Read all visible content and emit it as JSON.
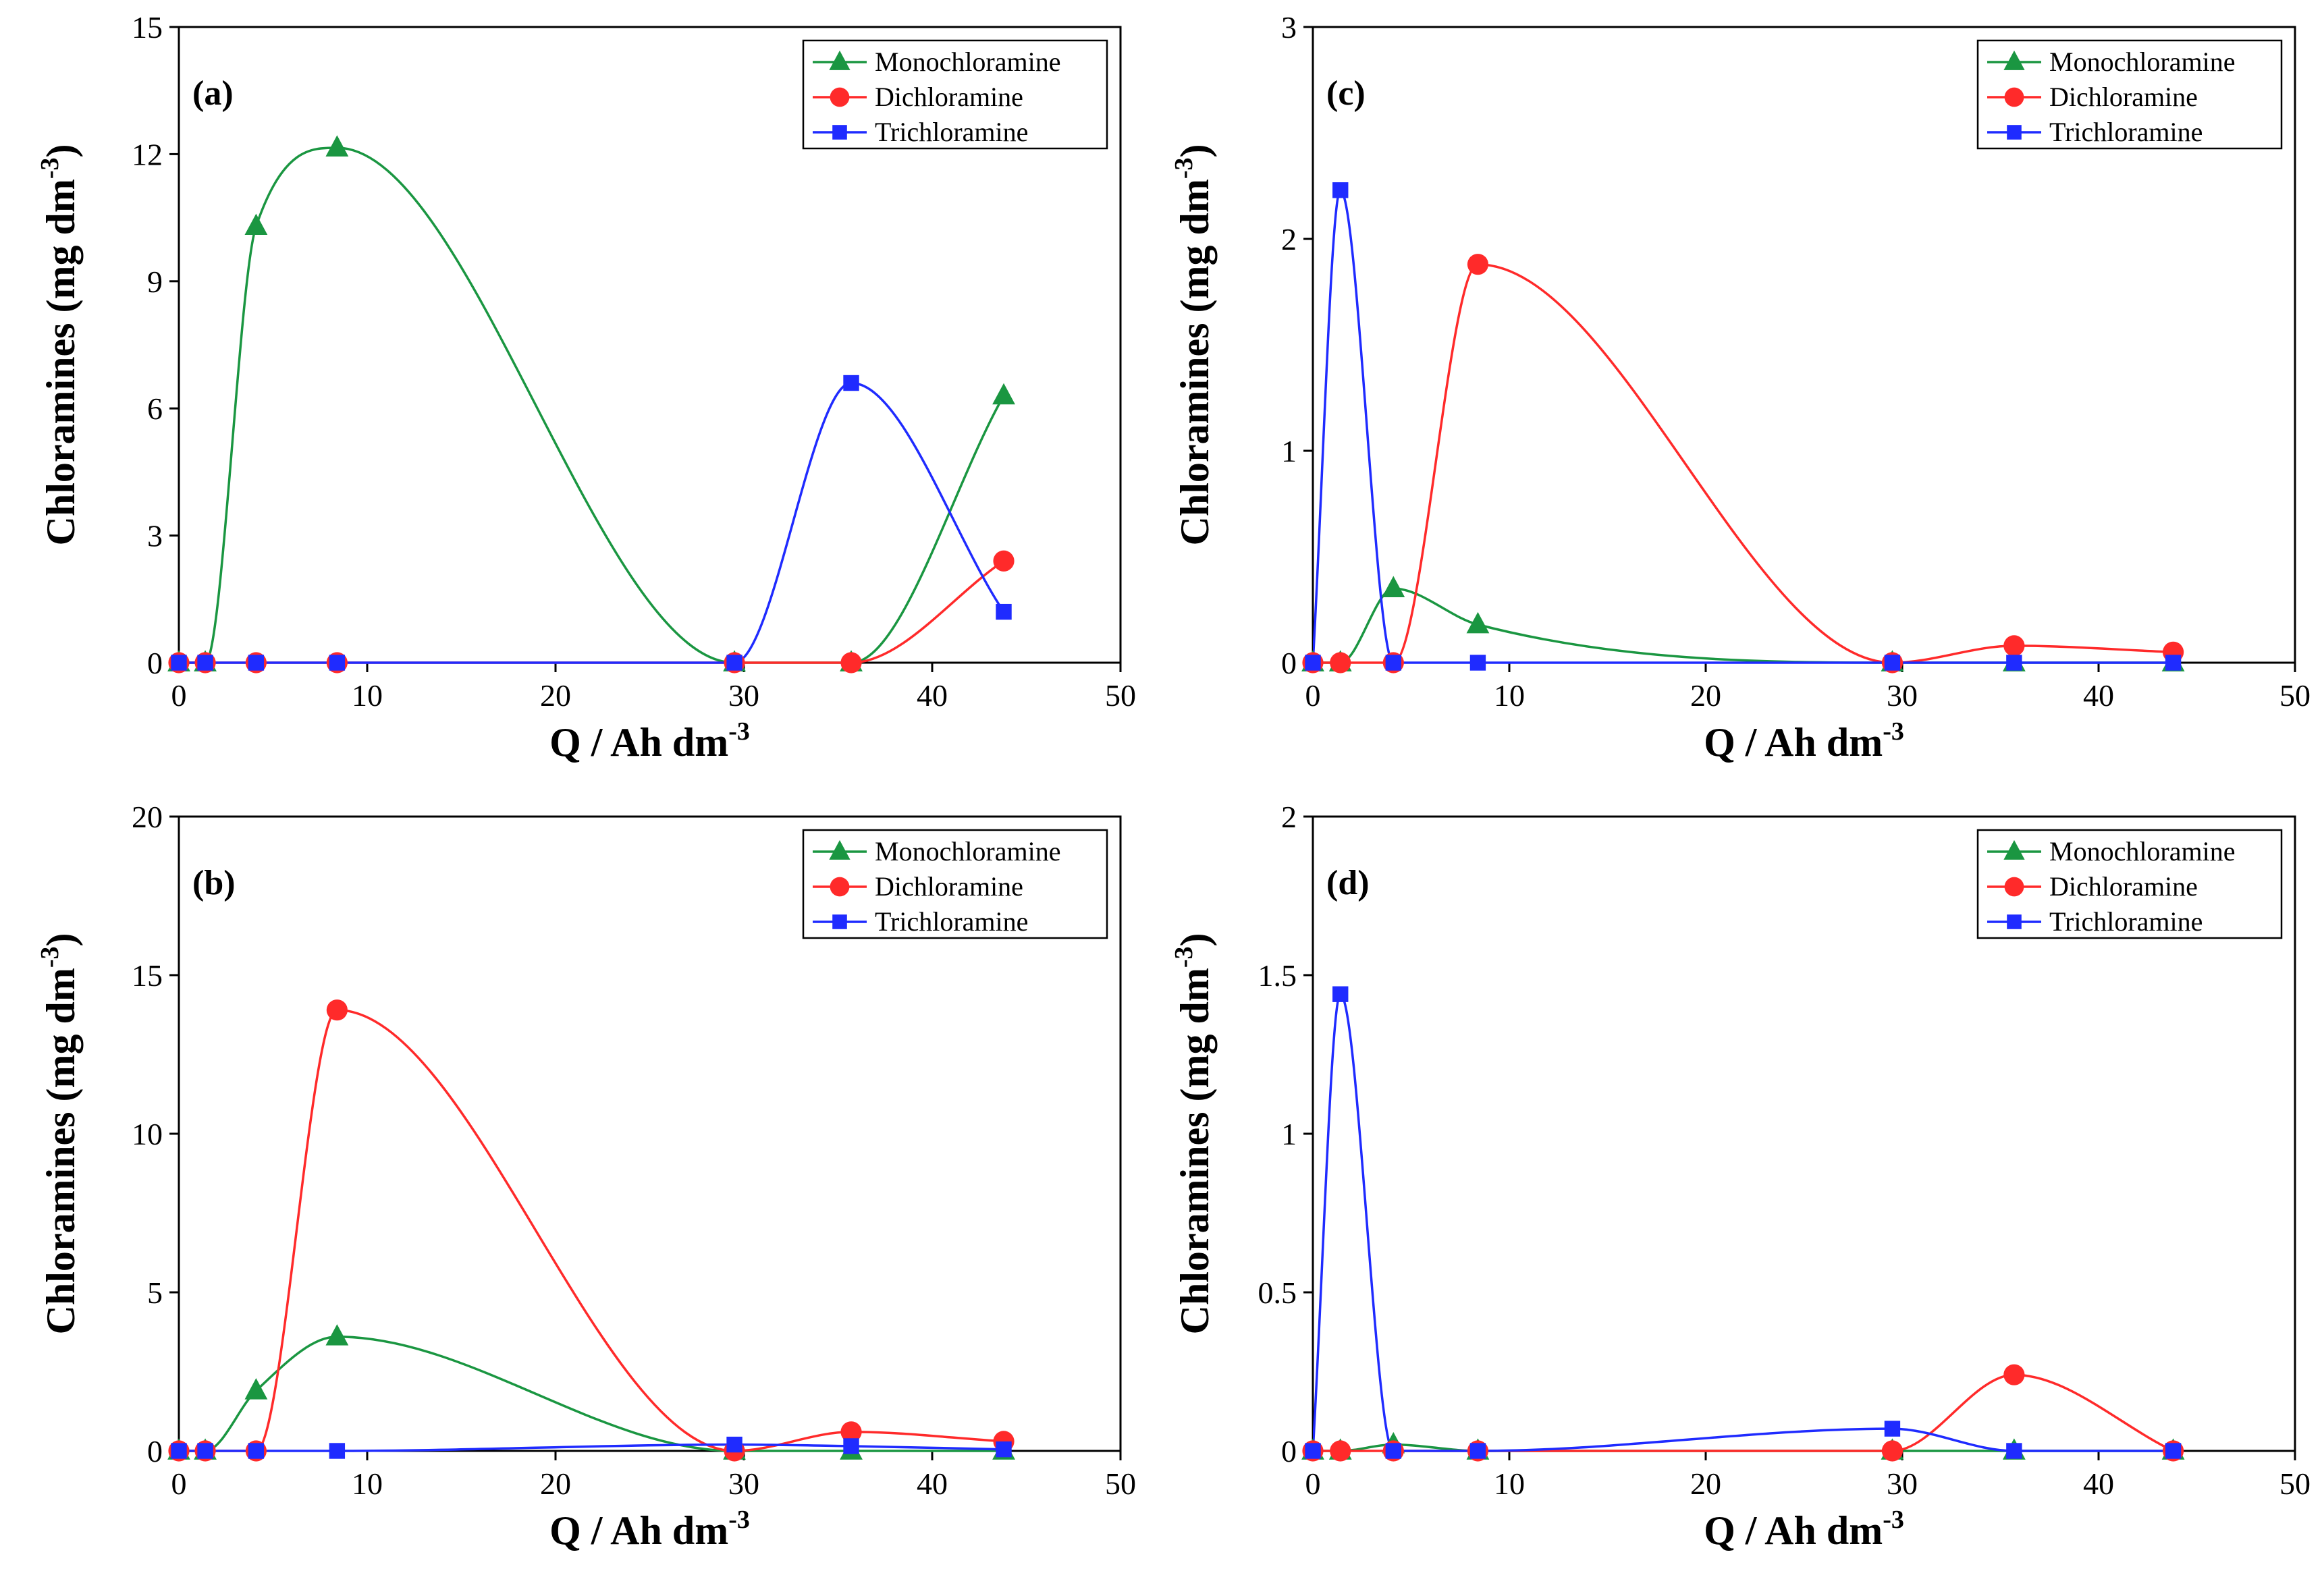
{
  "chart_data": [
    {
      "panel": "(a)",
      "type": "line",
      "xlabel": "Q / Ah dm",
      "xlabel_sup": "-3",
      "ylabel": "Chloramines (mg dm",
      "ylabel_sup": "-3",
      "ylabel_close": ")",
      "xlim": [
        0,
        50
      ],
      "ylim": [
        0,
        15
      ],
      "xticks": [
        0,
        10,
        20,
        30,
        40,
        50
      ],
      "yticks": [
        0,
        3,
        6,
        9,
        12,
        15
      ],
      "legend_position": "top-right",
      "x": [
        0,
        1.4,
        4.1,
        8.4,
        29.5,
        35.7,
        43.8
      ],
      "series": [
        {
          "name": "Monochloramine",
          "color": "#1a9641",
          "marker": "triangle",
          "values": [
            0,
            0,
            10.3,
            12.15,
            0,
            0,
            6.3
          ]
        },
        {
          "name": "Dichloramine",
          "color": "#ff2a2a",
          "marker": "circle",
          "values": [
            0,
            0,
            0,
            0,
            0,
            0,
            2.4
          ]
        },
        {
          "name": "Trichloramine",
          "color": "#1f2bff",
          "marker": "square",
          "values": [
            0,
            0,
            0,
            0,
            0,
            6.6,
            1.2
          ]
        }
      ]
    },
    {
      "panel": "(c)",
      "type": "line",
      "xlabel": "Q / Ah dm",
      "xlabel_sup": "-3",
      "ylabel": "Chloramines (mg dm",
      "ylabel_sup": "-3",
      "ylabel_close": ")",
      "xlim": [
        0,
        50
      ],
      "ylim": [
        0,
        3
      ],
      "xticks": [
        0,
        10,
        20,
        30,
        40,
        50
      ],
      "yticks": [
        0,
        1,
        2,
        3
      ],
      "legend_position": "top-right",
      "x": [
        0,
        1.4,
        4.1,
        8.4,
        29.5,
        35.7,
        43.8
      ],
      "series": [
        {
          "name": "Monochloramine",
          "color": "#1a9641",
          "marker": "triangle",
          "values": [
            0,
            0,
            0.35,
            0.18,
            0,
            0,
            0
          ]
        },
        {
          "name": "Dichloramine",
          "color": "#ff2a2a",
          "marker": "circle",
          "values": [
            0,
            0,
            0,
            1.88,
            0,
            0.08,
            0.05
          ]
        },
        {
          "name": "Trichloramine",
          "color": "#1f2bff",
          "marker": "square",
          "values": [
            0,
            2.23,
            0,
            0,
            0,
            0,
            0
          ]
        }
      ]
    },
    {
      "panel": "(b)",
      "type": "line",
      "xlabel": "Q / Ah dm",
      "xlabel_sup": "-3",
      "ylabel": "Chloramines (mg dm",
      "ylabel_sup": "-3",
      "ylabel_close": ")",
      "xlim": [
        0,
        50
      ],
      "ylim": [
        0,
        20
      ],
      "xticks": [
        0,
        10,
        20,
        30,
        40,
        50
      ],
      "yticks": [
        0,
        5,
        10,
        15,
        20
      ],
      "legend_position": "top-right",
      "x": [
        0,
        1.4,
        4.1,
        8.4,
        29.5,
        35.7,
        43.8
      ],
      "series": [
        {
          "name": "Monochloramine",
          "color": "#1a9641",
          "marker": "triangle",
          "values": [
            0,
            0,
            1.9,
            3.6,
            0,
            0,
            0
          ]
        },
        {
          "name": "Dichloramine",
          "color": "#ff2a2a",
          "marker": "circle",
          "values": [
            0,
            0,
            0,
            13.9,
            0,
            0.6,
            0.3
          ]
        },
        {
          "name": "Trichloramine",
          "color": "#1f2bff",
          "marker": "square",
          "values": [
            0,
            0,
            0,
            0,
            0.2,
            0.15,
            0.05
          ]
        }
      ]
    },
    {
      "panel": "(d)",
      "type": "line",
      "xlabel": "Q / Ah dm",
      "xlabel_sup": "-3",
      "ylabel": "Chloramines (mg dm",
      "ylabel_sup": "-3",
      "ylabel_close": ")",
      "xlim": [
        0,
        50
      ],
      "ylim": [
        0,
        2
      ],
      "xticks": [
        0,
        10,
        20,
        30,
        40,
        50
      ],
      "yticks": [
        0,
        0.5,
        1,
        1.5,
        2
      ],
      "legend_position": "top-right",
      "x": [
        0,
        1.4,
        4.1,
        8.4,
        29.5,
        35.7,
        43.8
      ],
      "series": [
        {
          "name": "Monochloramine",
          "color": "#1a9641",
          "marker": "triangle",
          "values": [
            0,
            0,
            0.02,
            0,
            0,
            0,
            0
          ]
        },
        {
          "name": "Dichloramine",
          "color": "#ff2a2a",
          "marker": "circle",
          "values": [
            0,
            0,
            0,
            0,
            0,
            0.24,
            0
          ]
        },
        {
          "name": "Trichloramine",
          "color": "#1f2bff",
          "marker": "square",
          "values": [
            0,
            1.44,
            0,
            0,
            0.07,
            0,
            0
          ]
        }
      ]
    }
  ]
}
